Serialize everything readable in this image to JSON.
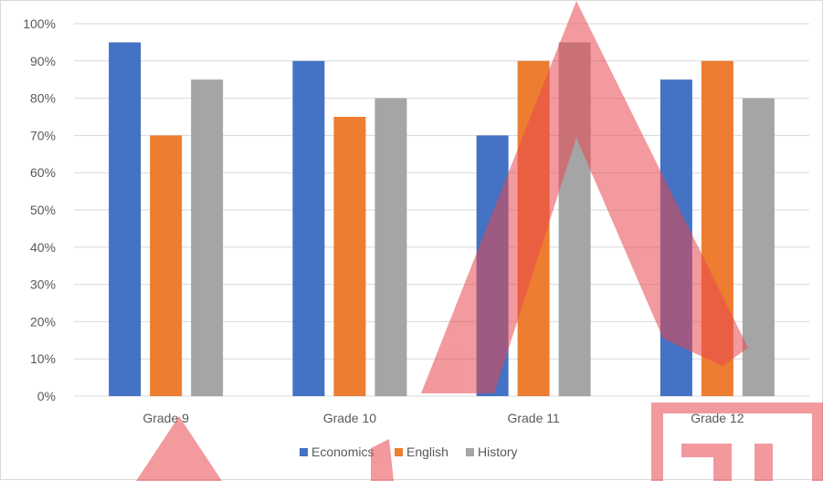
{
  "colors": {
    "economics": "#4472c4",
    "english": "#ed7d31",
    "history": "#a5a5a5",
    "gridline": "#d9d9d9",
    "watermark": "#e8474f"
  },
  "chart_data": {
    "type": "bar",
    "title": "",
    "xlabel": "",
    "ylabel": "",
    "categories": [
      "Grade 9",
      "Grade 10",
      "Grade 11",
      "Grade 12"
    ],
    "series": [
      {
        "name": "Economics",
        "values": [
          95,
          90,
          70,
          85
        ]
      },
      {
        "name": "English",
        "values": [
          70,
          75,
          90,
          90
        ]
      },
      {
        "name": "History",
        "values": [
          85,
          80,
          95,
          80
        ]
      }
    ],
    "ylim": [
      0,
      100
    ],
    "yticks": [
      "0%",
      "10%",
      "20%",
      "30%",
      "40%",
      "50%",
      "60%",
      "70%",
      "80%",
      "90%",
      "100%"
    ],
    "grid": true,
    "legend_position": "bottom"
  }
}
